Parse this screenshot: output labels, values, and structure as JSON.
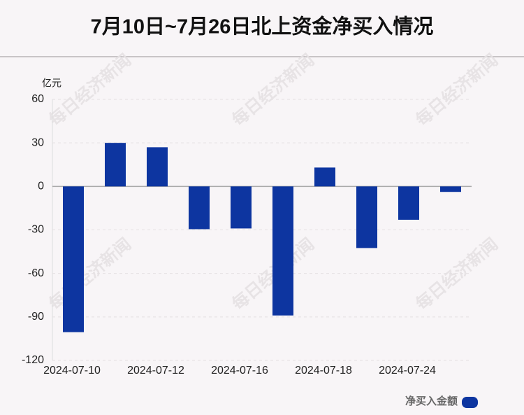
{
  "chart_data": {
    "type": "bar",
    "title": "7月10日~7月26日北上资金净买入情况",
    "y_unit": "亿元",
    "watermark": "每日经济新闻",
    "categories": [
      "2024-07-10",
      null,
      "2024-07-12",
      null,
      "2024-07-16",
      null,
      "2024-07-18",
      null,
      "2024-07-24",
      null
    ],
    "series": [
      {
        "name": "净买入金额",
        "color": "#0d35a0",
        "values": [
          -100.5,
          30,
          27,
          -29.5,
          -29,
          -89,
          13,
          -42.5,
          -23,
          -3.8
        ]
      }
    ],
    "ylim": [
      -120,
      60
    ],
    "yticks": [
      -120,
      -90,
      -60,
      -30,
      0,
      30,
      60
    ],
    "grid": true,
    "legend": "bottom-right"
  }
}
